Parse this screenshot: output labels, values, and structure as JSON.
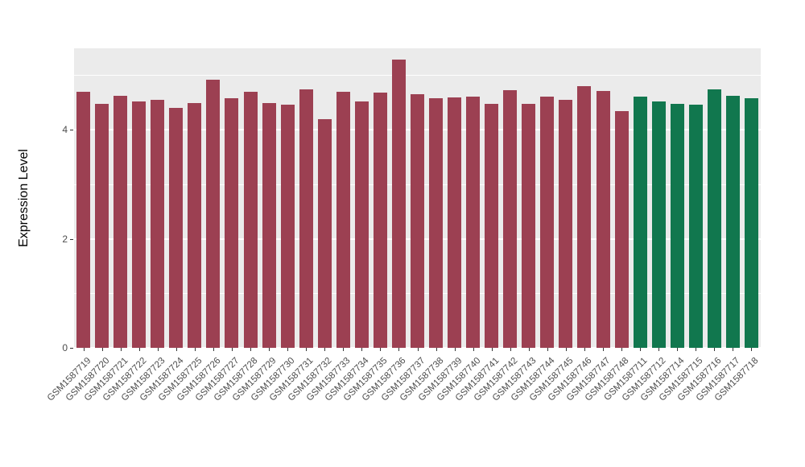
{
  "figure": {
    "background": "#FFFFFF",
    "panel_background": "#EBEBEB",
    "gridline_color": "#FFFFFF"
  },
  "chart_data": {
    "type": "bar",
    "title": "",
    "xlabel": "",
    "ylabel": "Expression Level",
    "ylim": [
      0,
      5.5
    ],
    "yticks": [
      0,
      2,
      4
    ],
    "minor_gridlines": [
      1,
      3,
      5
    ],
    "grid": "on",
    "legend_position": "none",
    "categories": [
      "GSM1587719",
      "GSM1587720",
      "GSM1587721",
      "GSM1587722",
      "GSM1587723",
      "GSM1587724",
      "GSM1587725",
      "GSM1587726",
      "GSM1587727",
      "GSM1587728",
      "GSM1587729",
      "GSM1587730",
      "GSM1587731",
      "GSM1587732",
      "GSM1587733",
      "GSM1587734",
      "GSM1587735",
      "GSM1587736",
      "GSM1587737",
      "GSM1587738",
      "GSM1587739",
      "GSM1587740",
      "GSM1587741",
      "GSM1587742",
      "GSM1587743",
      "GSM1587744",
      "GSM1587745",
      "GSM1587746",
      "GSM1587747",
      "GSM1587748",
      "GSM1587711",
      "GSM1587712",
      "GSM1587714",
      "GSM1587715",
      "GSM1587716",
      "GSM1587717",
      "GSM1587718"
    ],
    "values": [
      4.7,
      4.48,
      4.63,
      4.52,
      4.55,
      4.4,
      4.5,
      4.92,
      4.58,
      4.7,
      4.5,
      4.46,
      4.75,
      4.2,
      4.7,
      4.52,
      4.68,
      5.3,
      4.66,
      4.58,
      4.6,
      4.62,
      4.48,
      4.73,
      4.48,
      4.62,
      4.55,
      4.8,
      4.72,
      4.35,
      4.62,
      4.52,
      4.48,
      4.46,
      4.75,
      4.63,
      4.58
    ],
    "groups": [
      "groupA",
      "groupA",
      "groupA",
      "groupA",
      "groupA",
      "groupA",
      "groupA",
      "groupA",
      "groupA",
      "groupA",
      "groupA",
      "groupA",
      "groupA",
      "groupA",
      "groupA",
      "groupA",
      "groupA",
      "groupA",
      "groupA",
      "groupA",
      "groupA",
      "groupA",
      "groupA",
      "groupA",
      "groupA",
      "groupA",
      "groupA",
      "groupA",
      "groupA",
      "groupA",
      "groupB",
      "groupB",
      "groupB",
      "groupB",
      "groupB",
      "groupB",
      "groupB"
    ],
    "group_colors": {
      "groupA": "#9C4052",
      "groupB": "#11774E"
    }
  }
}
